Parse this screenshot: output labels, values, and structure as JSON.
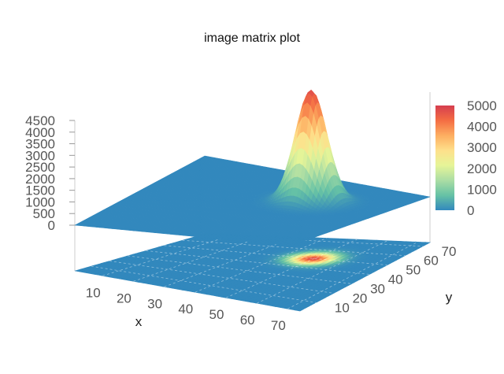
{
  "chart_data": {
    "type": "surface",
    "title": "image matrix plot",
    "xlabel": "x",
    "ylabel": "y",
    "x_ticks": [
      10,
      20,
      30,
      40,
      50,
      60,
      70
    ],
    "y_ticks": [
      10,
      20,
      30,
      40,
      50,
      60,
      70
    ],
    "z_ticks": [
      0,
      500,
      1000,
      1500,
      2000,
      2500,
      3000,
      3500,
      4000,
      4500
    ],
    "z_tick_labels": [
      "0",
      "500",
      "1000",
      "1500",
      "2000",
      "2500",
      "3000",
      "3500",
      "4000",
      "4500"
    ],
    "colorbar_ticks": [
      0,
      1000,
      2000,
      3000,
      4000,
      5000
    ],
    "colorbar_tick_labels": [
      "0",
      "1000",
      "2000",
      "3000",
      "4000",
      "5000"
    ],
    "xlim": [
      1,
      74
    ],
    "ylim": [
      1,
      74
    ],
    "zlim": [
      0,
      5000
    ],
    "surface": {
      "peak": 4800,
      "center_x": 50,
      "center_y": 50,
      "sigma_x": 4.5,
      "sigma_y": 4.5,
      "baseline": 0
    },
    "projection": "image heatmap on floor",
    "colorscale": [
      "#3288bd",
      "#66c2a5",
      "#abdda4",
      "#e6f598",
      "#fee08b",
      "#fdae61",
      "#f46d43",
      "#d53e4f"
    ]
  }
}
